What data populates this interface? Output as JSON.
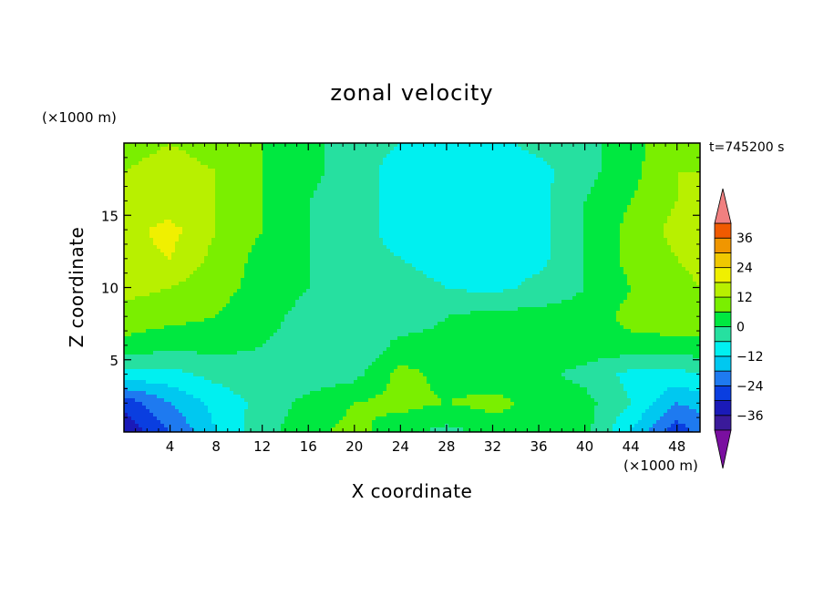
{
  "chart_data": {
    "type": "heatmap",
    "title": "zonal velocity",
    "xlabel": "X coordinate",
    "ylabel": "Z coordinate",
    "x_unit": "(×1000 m)",
    "y_unit": "(×1000 m)",
    "time_label": "t=745200 s",
    "xlim": [
      0,
      50
    ],
    "ylim": [
      0,
      20
    ],
    "x_ticks": [
      4,
      8,
      12,
      16,
      20,
      24,
      28,
      32,
      36,
      40,
      44,
      48
    ],
    "y_ticks": [
      5,
      10,
      15
    ],
    "colorbar": {
      "min": -42,
      "max": 42,
      "step": 6,
      "tick_labels": [
        "36",
        "24",
        "12",
        "0",
        "-12",
        "-24",
        "-36"
      ],
      "tick_values": [
        36,
        24,
        12,
        0,
        -12,
        -24,
        -36
      ],
      "extend": "both",
      "colors": [
        "#7a0fa0",
        "#3a1a9a",
        "#1a1ab8",
        "#0a3ee0",
        "#1e7af0",
        "#00c8f0",
        "#00f0f0",
        "#26e0a0",
        "#00e840",
        "#7aef00",
        "#b8f000",
        "#f0f000",
        "#f0c800",
        "#f09600",
        "#f05a00",
        "#f01e10",
        "#f08080"
      ]
    },
    "x_grid": [
      0,
      4,
      8,
      12,
      16,
      20,
      24,
      28,
      32,
      36,
      40,
      44,
      48,
      50
    ],
    "z_grid": [
      0,
      2,
      4,
      6,
      8,
      10,
      12,
      14,
      16,
      18,
      20
    ],
    "values": [
      [
        -35,
        -24,
        -12,
        -2,
        4,
        8,
        2,
        -2,
        2,
        6,
        2,
        -12,
        -28,
        -22
      ],
      [
        -28,
        -18,
        -10,
        -4,
        2,
        6,
        8,
        6,
        8,
        4,
        2,
        -6,
        -18,
        -16
      ],
      [
        -8,
        -8,
        -4,
        -2,
        -4,
        -2,
        8,
        4,
        2,
        2,
        -2,
        -8,
        -8,
        -6
      ],
      [
        4,
        2,
        2,
        0,
        -2,
        -6,
        2,
        2,
        2,
        2,
        4,
        4,
        4,
        4
      ],
      [
        10,
        8,
        6,
        2,
        -2,
        -2,
        -4,
        0,
        2,
        2,
        2,
        8,
        10,
        10
      ],
      [
        14,
        12,
        8,
        4,
        0,
        -4,
        -4,
        -6,
        -8,
        -4,
        0,
        6,
        10,
        12
      ],
      [
        16,
        18,
        10,
        4,
        0,
        -4,
        -6,
        -8,
        -10,
        -8,
        0,
        8,
        12,
        14
      ],
      [
        16,
        20,
        12,
        6,
        0,
        -4,
        -8,
        -10,
        -10,
        -8,
        0,
        8,
        14,
        14
      ],
      [
        14,
        14,
        12,
        6,
        0,
        -4,
        -8,
        -12,
        -12,
        -8,
        0,
        6,
        12,
        12
      ],
      [
        12,
        14,
        12,
        6,
        2,
        -4,
        -8,
        -10,
        -10,
        -8,
        -2,
        4,
        12,
        12
      ],
      [
        10,
        12,
        10,
        6,
        2,
        -4,
        -6,
        -6,
        -8,
        -4,
        -2,
        4,
        10,
        12
      ]
    ]
  }
}
